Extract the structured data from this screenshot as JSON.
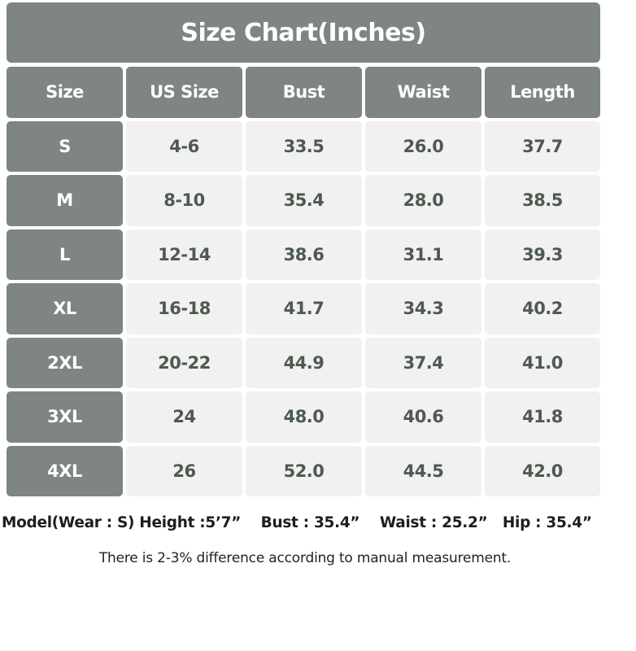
{
  "title": "Size Chart(Inches)",
  "headers": [
    "Size",
    "US Size",
    "Bust",
    "Waist",
    "Length"
  ],
  "rows": [
    [
      "S",
      "4-6",
      "33.5",
      "26.0",
      "37.7"
    ],
    [
      "M",
      "8-10",
      "35.4",
      "28.0",
      "38.5"
    ],
    [
      "L",
      "12-14",
      "38.6",
      "31.1",
      "39.3"
    ],
    [
      "XL",
      "16-18",
      "41.7",
      "34.3",
      "40.2"
    ],
    [
      "2XL",
      "20-22",
      "44.9",
      "37.4",
      "41.0"
    ],
    [
      "3XL",
      "24",
      "48.0",
      "40.6",
      "41.8"
    ],
    [
      "4XL",
      "26",
      "52.0",
      "44.5",
      "42.0"
    ]
  ],
  "model_info": "Model(Wear : S) Height :5’7”    Bust : 35.4”    Waist : 25.2”   Hip : 35.4”",
  "note": "There is 2-3% difference according to manual measurement.",
  "colors": {
    "header_bg": "#7f8682",
    "cell_bg": "#f1f1f1",
    "cell_text": "#4e5a4f"
  }
}
